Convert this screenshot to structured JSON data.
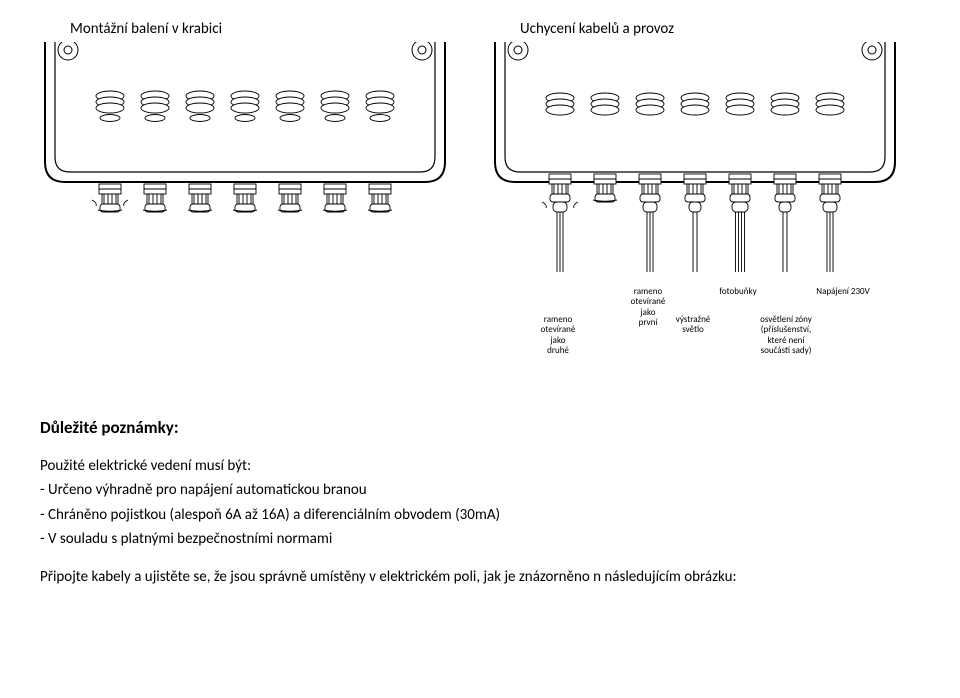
{
  "diagram": {
    "left_title": "Montážní balení v krabici",
    "right_title": "Uchycení kabelů a provoz",
    "stroke_color": "#000000",
    "stroke_width": 1,
    "gland_count": 7,
    "background_color": "#ffffff",
    "gland_fill": "#ffffff",
    "hatch_color": "#000000"
  },
  "right_labels": {
    "l1_upper": "",
    "l1_lower": "rameno\notevírané\njako\ndruhé",
    "l2_upper": "rameno\notevírané\njako\nprvní",
    "l2_lower": "",
    "l3_upper": "",
    "l3_lower": "výstražné\nsvětlo",
    "l4_upper": "fotobuňky",
    "l4_lower": "",
    "l5_upper": "",
    "l5_lower": "osvětlení zóny\n(příslušenství,\nkteré není\nsoučástí sady)",
    "l6_upper": "Napájení 230V",
    "l6_lower": ""
  },
  "notes": {
    "heading": "Důležité poznámky:",
    "line1": "Použité elektrické vedení musí být:",
    "bullet1": "- Určeno výhradně pro napájení automatickou branou",
    "bullet2": "- Chráněno pojistkou (alespoň 6A až 16A) a diferenciálním obvodem (30mA)",
    "bullet3": "- V souladu s platnými bezpečnostními normami",
    "para2": "Připojte kabely a ujistěte se, že jsou správně umístěny v elektrickém poli, jak je znázorněno n následujícím obrázku:"
  }
}
